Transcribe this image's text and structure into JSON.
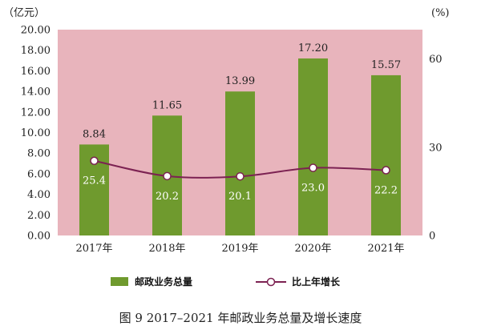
{
  "chart_data": {
    "type": "bar",
    "categories": [
      "2017年",
      "2018年",
      "2019年",
      "2020年",
      "2021年"
    ],
    "series": [
      {
        "name": "邮政业务总量",
        "type": "bar",
        "axis": "left",
        "values": [
          8.84,
          11.65,
          13.99,
          17.2,
          15.57
        ],
        "labels": [
          "8.84",
          "11.65",
          "13.99",
          "17.20",
          "15.57"
        ]
      },
      {
        "name": "比上年增长",
        "type": "line",
        "axis": "right",
        "values": [
          25.4,
          20.2,
          20.1,
          23.0,
          22.2
        ],
        "labels": [
          "25.4",
          "20.2",
          "20.1",
          "23.0",
          "22.2"
        ]
      }
    ],
    "ylabel_left": "（亿元）",
    "ylabel_right": "(%)",
    "ylim_left": [
      0,
      20
    ],
    "yticks_left": [
      "0.00",
      "2.00",
      "4.00",
      "6.00",
      "8.00",
      "10.00",
      "12.00",
      "14.00",
      "16.00",
      "18.00",
      "20.00"
    ],
    "ylim_right": [
      0,
      70
    ],
    "yticks_right": [
      {
        "value": 0,
        "label": "0"
      },
      {
        "value": 30,
        "label": "30"
      },
      {
        "value": 60,
        "label": "60"
      }
    ],
    "legend_position": "bottom",
    "colors": {
      "plot_bg": "#e8b4bc",
      "bar": "#6f9a2e",
      "line": "#7c2252",
      "marker_fill": "#ffffff"
    }
  },
  "caption": "图 9 2017–2021 年邮政业务总量及增长速度"
}
